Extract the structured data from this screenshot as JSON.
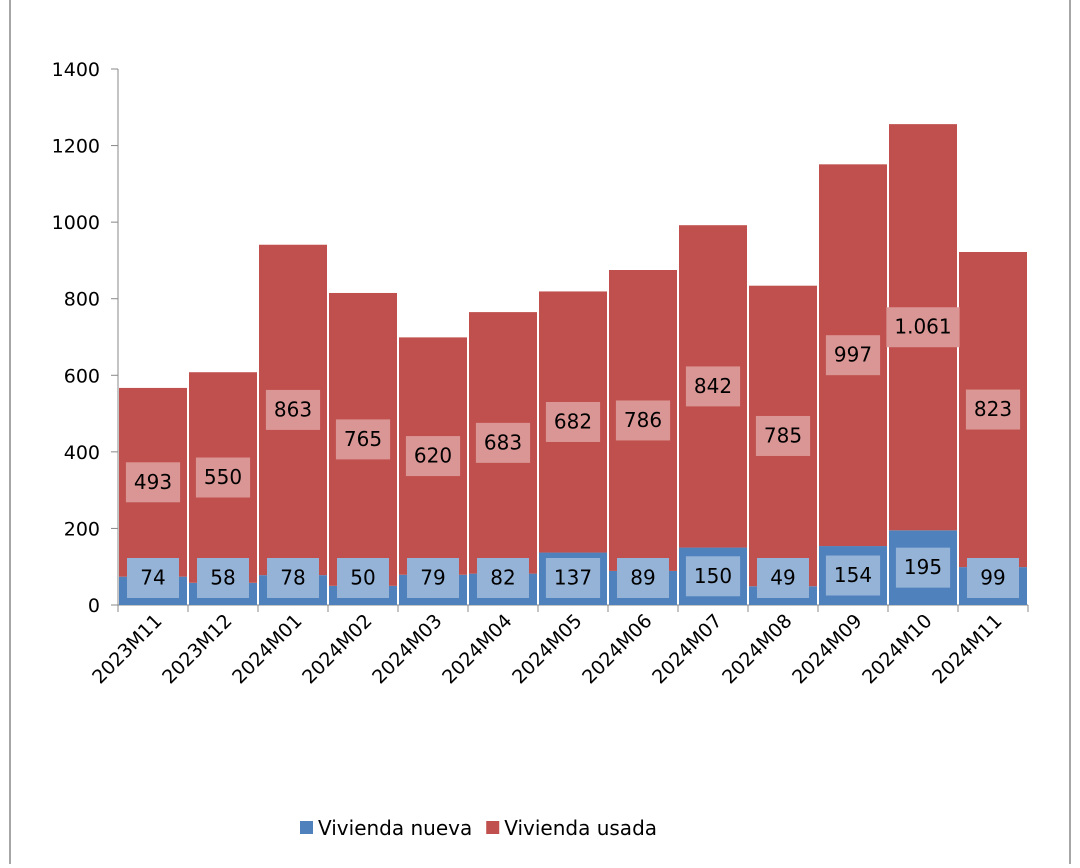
{
  "chart_data": {
    "type": "stacked-bar",
    "categories": [
      "2023M11",
      "2023M12",
      "2024M01",
      "2024M02",
      "2024M03",
      "2024M04",
      "2024M05",
      "2024M06",
      "2024M07",
      "2024M08",
      "2024M09",
      "2024M10",
      "2024M11"
    ],
    "series": [
      {
        "name": "Vivienda nueva",
        "color": "#4f81bd",
        "label_color": "#95b3d7",
        "values": [
          74,
          58,
          78,
          50,
          79,
          82,
          137,
          89,
          150,
          49,
          154,
          195,
          99
        ]
      },
      {
        "name": "Vivienda usada",
        "color": "#c0504d",
        "label_color": "#da9694",
        "values": [
          493,
          550,
          863,
          765,
          620,
          683,
          682,
          786,
          842,
          785,
          997,
          1061,
          823
        ],
        "value_labels": [
          "493",
          "550",
          "863",
          "765",
          "620",
          "683",
          "682",
          "786",
          "842",
          "785",
          "997",
          "1.061",
          "823"
        ]
      }
    ],
    "ylim": [
      0,
      1400
    ],
    "yticks": [
      0,
      200,
      400,
      600,
      800,
      1000,
      1200,
      1400
    ],
    "legend": "bottom"
  }
}
